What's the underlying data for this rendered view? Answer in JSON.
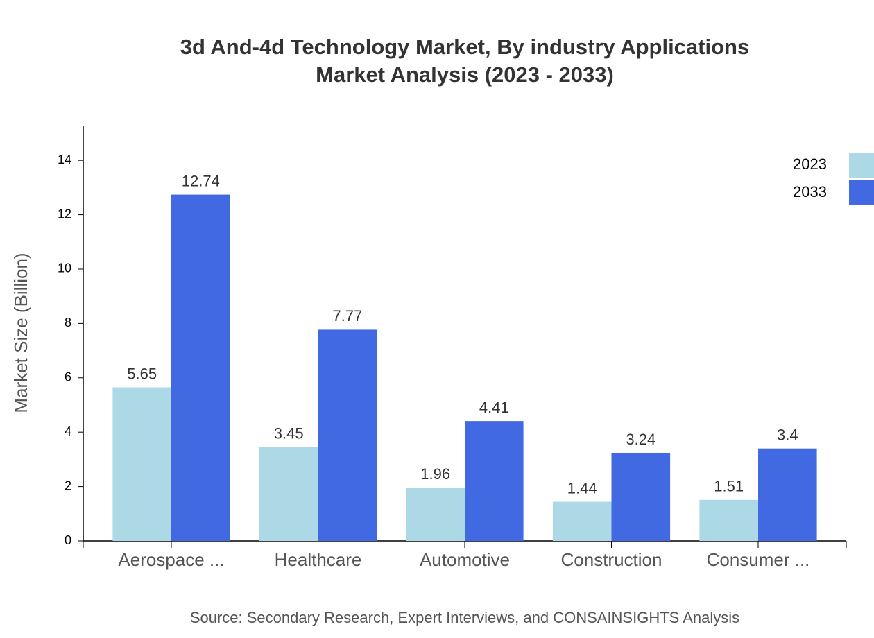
{
  "chart_data": {
    "type": "bar",
    "title": [
      "3d And-4d Technology Market, By industry Applications",
      "Market Analysis (2023 - 2033)"
    ],
    "y_label": "Market Size (Billion)",
    "source": "Source: Secondary Research, Expert Interviews, and CONSAINSIGHTS Analysis",
    "categories": [
      "Aerospace ...",
      "Healthcare",
      "Automotive",
      "Construction",
      "Consumer ..."
    ],
    "series": [
      {
        "name": "2023",
        "color": "#add8e6",
        "values": [
          5.65,
          3.45,
          1.96,
          1.44,
          1.51
        ]
      },
      {
        "name": "2033",
        "color": "#4169e1",
        "values": [
          12.74,
          7.77,
          4.41,
          3.24,
          3.4
        ]
      }
    ],
    "ylim": [
      0,
      15.28
    ],
    "yticks": [
      0,
      2,
      4,
      6,
      8,
      10,
      12,
      14
    ],
    "legend": "top-right"
  }
}
